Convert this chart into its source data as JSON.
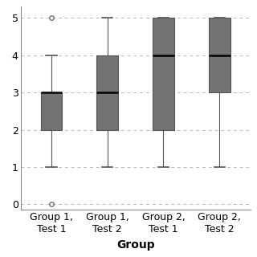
{
  "groups": [
    "Group 1,\nTest 1",
    "Group 1,\nTest 2",
    "Group 2,\nTest 1",
    "Group 2,\nTest 2"
  ],
  "boxes": [
    {
      "q1": 2,
      "median": 3,
      "q3": 3,
      "whislo": 1,
      "whishi": 4,
      "fliers": [
        0,
        5
      ]
    },
    {
      "q1": 2,
      "median": 3,
      "q3": 4,
      "whislo": 1,
      "whishi": 5,
      "fliers": []
    },
    {
      "q1": 2,
      "median": 4,
      "q3": 5,
      "whislo": 1,
      "whishi": 5,
      "fliers": []
    },
    {
      "q1": 3,
      "median": 4,
      "q3": 5,
      "whislo": 1,
      "whishi": 5,
      "fliers": []
    }
  ],
  "ylim": [
    -0.15,
    5.3
  ],
  "yticks": [
    0,
    1,
    2,
    3,
    4,
    5
  ],
  "ylabel": "",
  "xlabel": "Group",
  "box_color": "#737373",
  "median_color": "#000000",
  "whisker_color": "#555555",
  "cap_color": "#555555",
  "flier_color": "#555555",
  "background_color": "#ffffff",
  "grid_color": "#bbbbbb",
  "xlabel_fontsize": 10,
  "tick_fontsize": 9,
  "box_width": 0.38,
  "figsize": [
    3.2,
    3.2
  ],
  "dpi": 100
}
